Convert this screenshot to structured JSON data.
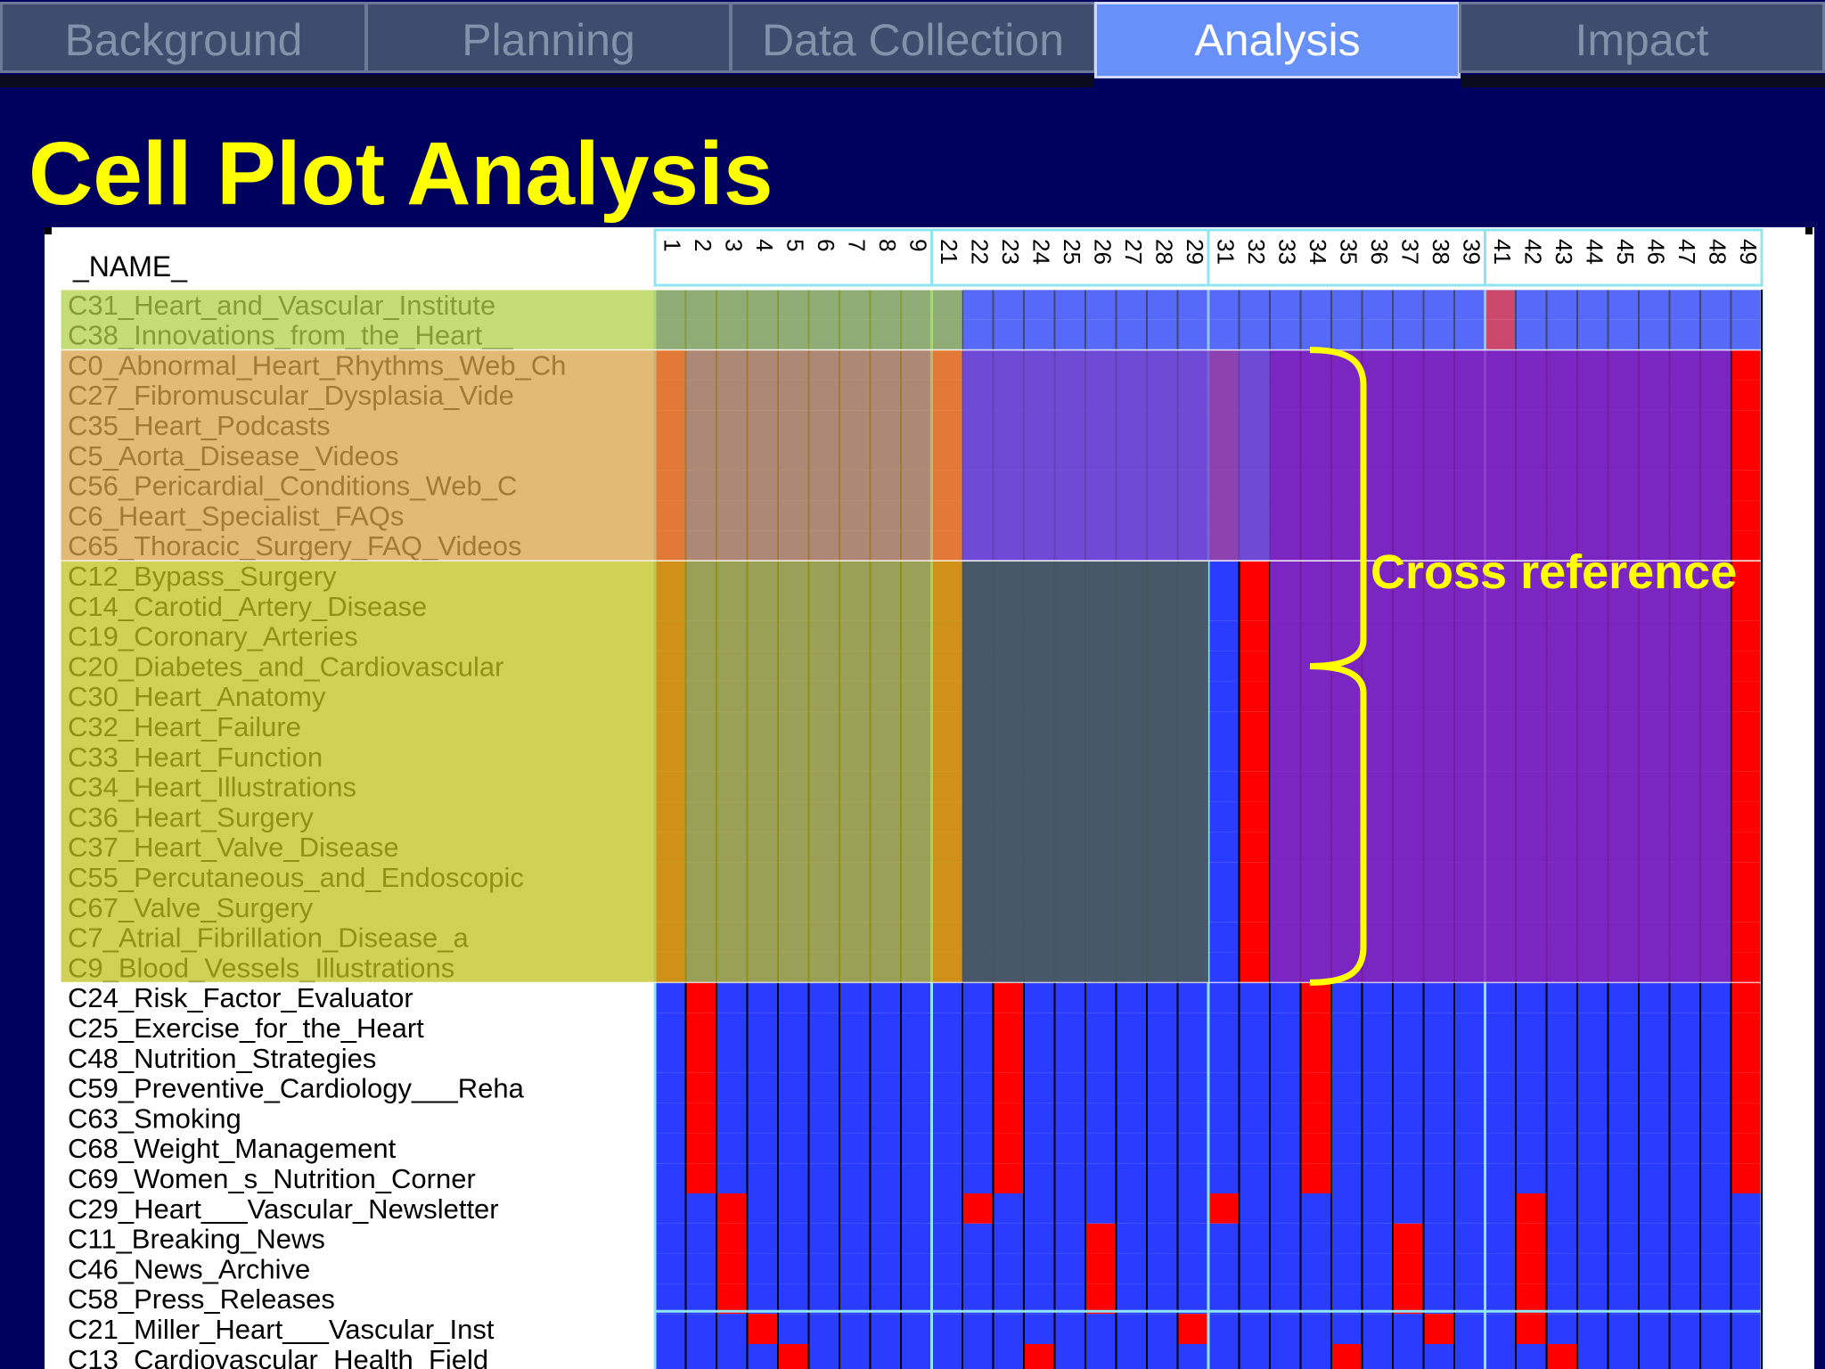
{
  "tabs": [
    {
      "label": "Background",
      "active": false
    },
    {
      "label": "Planning",
      "active": false
    },
    {
      "label": "Data Collection",
      "active": false
    },
    {
      "label": "Analysis",
      "active": true
    },
    {
      "label": "Impact",
      "active": false
    }
  ],
  "title": "Cell Plot Analysis",
  "annotation": "Cross reference",
  "colors": {
    "background": "#00005e",
    "cell_blue": "#2a3cff",
    "cell_red": "#ff0000",
    "highlight_green": "#b3d14a",
    "highlight_orange": "#d9a24a",
    "highlight_olive": "#c2c120",
    "accent_yellow": "#ffff00"
  },
  "cell_plot": {
    "name_header": "_NAME_",
    "groups": [
      [
        "1",
        "2",
        "3",
        "4",
        "5",
        "6",
        "7",
        "8",
        "9"
      ],
      [
        "21",
        "22",
        "23",
        "24",
        "25",
        "26",
        "27",
        "28",
        "29"
      ],
      [
        "31",
        "32",
        "33",
        "34",
        "35",
        "36",
        "37",
        "38",
        "39"
      ],
      [
        "41",
        "42",
        "43",
        "44",
        "45",
        "46",
        "47",
        "48",
        "49"
      ]
    ],
    "rows": [
      "C31_Heart_and_Vascular_Institute",
      "C38_Innovations_from_the_Heart__",
      "C0_Abnormal_Heart_Rhythms_Web_Ch",
      "C27_Fibromuscular_Dysplasia_Vide",
      "C35_Heart_Podcasts",
      "C5_Aorta_Disease_Videos",
      "C56_Pericardial_Conditions_Web_C",
      "C6_Heart_Specialist_FAQs",
      "C65_Thoracic_Surgery_FAQ_Videos",
      "C12_Bypass_Surgery",
      "C14_Carotid_Artery_Disease",
      "C19_Coronary_Arteries",
      "C20_Diabetes_and_Cardiovascular",
      "C30_Heart_Anatomy",
      "C32_Heart_Failure",
      "C33_Heart_Function",
      "C34_Heart_Illustrations",
      "C36_Heart_Surgery",
      "C37_Heart_Valve_Disease",
      "C55_Percutaneous_and_Endoscopic",
      "C67_Valve_Surgery",
      "C7_Atrial_Fibrillation_Disease_a",
      "C9_Blood_Vessels_Illustrations",
      "C24_Risk_Factor_Evaluator",
      "C25_Exercise_for_the_Heart",
      "C48_Nutrition_Strategies",
      "C59_Preventive_Cardiology___Reha",
      "C63_Smoking",
      "C68_Weight_Management",
      "C69_Women_s_Nutrition_Corner",
      "C29_Heart___Vascular_Newsletter",
      "C11_Breaking_News",
      "C46_News_Archive",
      "C58_Press_Releases",
      "C21_Miller_Heart___Vascular_Inst",
      "C13_Cardiovascular_Health_Field"
    ],
    "red_cells": [
      [
        0,
        27
      ],
      [
        1,
        27
      ],
      [
        2,
        0
      ],
      [
        2,
        9
      ],
      [
        2,
        18
      ],
      [
        2,
        35
      ],
      [
        3,
        0
      ],
      [
        3,
        9
      ],
      [
        3,
        18
      ],
      [
        3,
        35
      ],
      [
        4,
        0
      ],
      [
        4,
        9
      ],
      [
        4,
        18
      ],
      [
        4,
        35
      ],
      [
        5,
        0
      ],
      [
        5,
        9
      ],
      [
        5,
        18
      ],
      [
        5,
        35
      ],
      [
        6,
        0
      ],
      [
        6,
        9
      ],
      [
        6,
        18
      ],
      [
        6,
        35
      ],
      [
        7,
        0
      ],
      [
        7,
        9
      ],
      [
        7,
        18
      ],
      [
        7,
        35
      ],
      [
        8,
        0
      ],
      [
        8,
        9
      ],
      [
        8,
        18
      ],
      [
        8,
        35
      ],
      [
        9,
        0
      ],
      [
        9,
        9
      ],
      [
        9,
        19
      ],
      [
        10,
        0
      ],
      [
        10,
        9
      ],
      [
        10,
        19
      ],
      [
        11,
        0
      ],
      [
        11,
        9
      ],
      [
        11,
        19
      ],
      [
        12,
        0
      ],
      [
        12,
        9
      ],
      [
        12,
        19
      ],
      [
        13,
        0
      ],
      [
        13,
        9
      ],
      [
        13,
        19
      ],
      [
        14,
        0
      ],
      [
        14,
        9
      ],
      [
        14,
        19
      ],
      [
        15,
        0
      ],
      [
        15,
        9
      ],
      [
        15,
        19
      ],
      [
        16,
        0
      ],
      [
        16,
        9
      ],
      [
        16,
        19
      ],
      [
        17,
        0
      ],
      [
        17,
        9
      ],
      [
        17,
        19
      ],
      [
        18,
        0
      ],
      [
        18,
        9
      ],
      [
        18,
        19
      ],
      [
        19,
        0
      ],
      [
        19,
        9
      ],
      [
        19,
        19
      ],
      [
        20,
        0
      ],
      [
        20,
        9
      ],
      [
        20,
        19
      ],
      [
        21,
        0
      ],
      [
        21,
        9
      ],
      [
        21,
        19
      ],
      [
        22,
        0
      ],
      [
        22,
        9
      ],
      [
        22,
        19
      ],
      [
        9,
        35
      ],
      [
        10,
        35
      ],
      [
        11,
        35
      ],
      [
        12,
        35
      ],
      [
        13,
        35
      ],
      [
        14,
        35
      ],
      [
        15,
        35
      ],
      [
        16,
        35
      ],
      [
        17,
        35
      ],
      [
        18,
        35
      ],
      [
        19,
        35
      ],
      [
        20,
        35
      ],
      [
        21,
        35
      ],
      [
        22,
        35
      ],
      [
        23,
        1
      ],
      [
        23,
        11
      ],
      [
        23,
        21
      ],
      [
        23,
        35
      ],
      [
        24,
        1
      ],
      [
        24,
        11
      ],
      [
        24,
        21
      ],
      [
        24,
        35
      ],
      [
        25,
        1
      ],
      [
        25,
        11
      ],
      [
        25,
        21
      ],
      [
        25,
        35
      ],
      [
        26,
        1
      ],
      [
        26,
        11
      ],
      [
        26,
        21
      ],
      [
        26,
        35
      ],
      [
        27,
        1
      ],
      [
        27,
        11
      ],
      [
        27,
        21
      ],
      [
        27,
        35
      ],
      [
        28,
        1
      ],
      [
        28,
        11
      ],
      [
        28,
        21
      ],
      [
        28,
        35
      ],
      [
        29,
        1
      ],
      [
        29,
        11
      ],
      [
        29,
        21
      ],
      [
        29,
        35
      ],
      [
        30,
        2
      ],
      [
        30,
        10
      ],
      [
        30,
        18
      ],
      [
        30,
        28
      ],
      [
        31,
        2
      ],
      [
        31,
        14
      ],
      [
        31,
        24
      ],
      [
        31,
        28
      ],
      [
        32,
        2
      ],
      [
        32,
        14
      ],
      [
        32,
        24
      ],
      [
        32,
        28
      ],
      [
        33,
        2
      ],
      [
        33,
        14
      ],
      [
        33,
        24
      ],
      [
        33,
        28
      ],
      [
        34,
        3
      ],
      [
        34,
        17
      ],
      [
        34,
        25
      ],
      [
        34,
        28
      ],
      [
        35,
        4
      ],
      [
        35,
        12
      ],
      [
        35,
        22
      ],
      [
        35,
        29
      ]
    ],
    "highlight_bands": [
      {
        "color": "#b3d14a",
        "rows": [
          0,
          1
        ]
      },
      {
        "color": "#d9a24a",
        "rows": [
          2,
          8
        ]
      },
      {
        "color": "#c2c120",
        "rows": [
          9,
          22
        ]
      }
    ],
    "purple_block": {
      "rows": [
        2,
        22
      ],
      "cols": [
        20,
        34
      ],
      "color": "#8a22b8"
    },
    "slate_block": {
      "rows": [
        9,
        22
      ],
      "cols": [
        10,
        17
      ],
      "color": "#4a5a60"
    }
  }
}
